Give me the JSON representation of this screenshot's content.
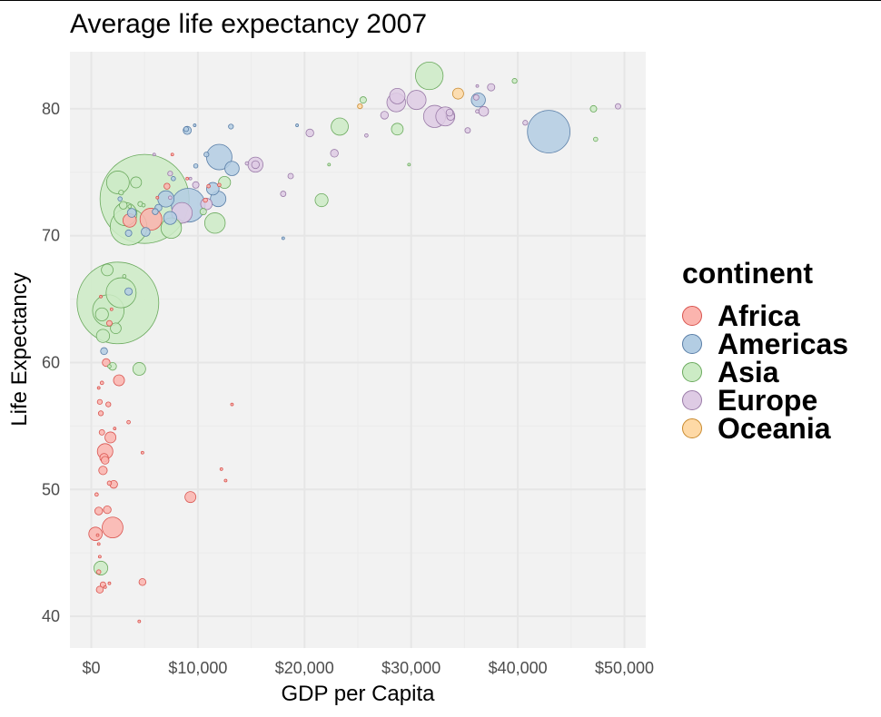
{
  "chart_data": {
    "type": "scatter",
    "title": "Average life expectancy 2007",
    "xlabel": "GDP per Capita",
    "ylabel": "Life Expectancy",
    "xlim": [
      -2000,
      52000
    ],
    "ylim": [
      37.5,
      84.5
    ],
    "xticks": [
      0,
      10000,
      20000,
      30000,
      40000,
      50000
    ],
    "xtick_labels": [
      "$0",
      "$10,000",
      "$20,000",
      "$30,000",
      "$40,000",
      "$50,000"
    ],
    "yticks": [
      40,
      50,
      60,
      70,
      80
    ],
    "ytick_labels": [
      "40",
      "50",
      "60",
      "70",
      "80"
    ],
    "grid": true,
    "legend_title": "continent",
    "legend_position": "right",
    "size_variable": "population (millions)",
    "colors": {
      "Africa": {
        "fill": "#FBB4AE",
        "stroke": "#D9544F"
      },
      "Americas": {
        "fill": "#B3CDE3",
        "stroke": "#5A7FA8"
      },
      "Asia": {
        "fill": "#CCEBC5",
        "stroke": "#6BAA5E"
      },
      "Europe": {
        "fill": "#DECBE4",
        "stroke": "#9A7BA8"
      },
      "Oceania": {
        "fill": "#FED9A6",
        "stroke": "#C98A2E"
      }
    },
    "series": [
      {
        "name": "Africa",
        "points": [
          [
            2000,
            47,
            72
          ],
          [
            1300,
            53,
            40
          ],
          [
            400,
            46.5,
            30
          ],
          [
            5600,
            71.3,
            80
          ],
          [
            3600,
            71.2,
            30
          ],
          [
            9300,
            49.4,
            20
          ],
          [
            2600,
            58.6,
            20
          ],
          [
            1800,
            54.1,
            20
          ],
          [
            1100,
            51.5,
            12
          ],
          [
            1200,
            52.5,
            12
          ],
          [
            1300,
            52.3,
            10
          ],
          [
            700,
            48.3,
            10
          ],
          [
            1500,
            48.4,
            10
          ],
          [
            2100,
            50.4,
            10
          ],
          [
            4800,
            42.7,
            8
          ],
          [
            1400,
            60.0,
            10
          ],
          [
            1100,
            42.5,
            5
          ],
          [
            800,
            42.1,
            8
          ],
          [
            1000,
            54.5,
            5
          ],
          [
            1600,
            56.7,
            4
          ],
          [
            800,
            56.9,
            4
          ],
          [
            900,
            56.0,
            4
          ],
          [
            3500,
            55.3,
            2
          ],
          [
            500,
            49.6,
            2
          ],
          [
            700,
            43.5,
            3
          ],
          [
            1700,
            50.5,
            3
          ],
          [
            1000,
            58.4,
            2
          ],
          [
            700,
            58.0,
            1
          ],
          [
            1700,
            63.1,
            5
          ],
          [
            4800,
            52.9,
            1
          ],
          [
            12200,
            51.6,
            0.5
          ],
          [
            12600,
            50.7,
            1
          ],
          [
            13200,
            56.7,
            0.5
          ],
          [
            800,
            44.7,
            1
          ],
          [
            600,
            46.4,
            1
          ],
          [
            1300,
            42.3,
            1
          ],
          [
            1700,
            42.6,
            1
          ],
          [
            700,
            45.7,
            1
          ],
          [
            2200,
            54.8,
            0.3
          ],
          [
            1900,
            64.2,
            1
          ],
          [
            900,
            65.2,
            1
          ],
          [
            4500,
            39.6,
            1
          ],
          [
            6200,
            73.0,
            1
          ],
          [
            7100,
            73.9,
            6
          ],
          [
            12000,
            74.0,
            2
          ],
          [
            7600,
            76.4,
            0.3
          ],
          [
            10700,
            72.8,
            3
          ],
          [
            11000,
            73.9,
            2
          ],
          [
            9000,
            74.5,
            0.3
          ]
        ]
      },
      {
        "name": "Americas",
        "points": [
          [
            42900,
            78.2,
            301
          ],
          [
            9100,
            72.4,
            190
          ],
          [
            12000,
            76.2,
            108
          ],
          [
            11900,
            72.9,
            40
          ],
          [
            13200,
            75.3,
            34
          ],
          [
            7000,
            72.9,
            44
          ],
          [
            7400,
            71.4,
            28
          ],
          [
            11400,
            73.7,
            26
          ],
          [
            3800,
            71.8,
            13
          ],
          [
            5100,
            70.3,
            13
          ],
          [
            6300,
            72.2,
            8
          ],
          [
            1200,
            60.9,
            8
          ],
          [
            3500,
            70.2,
            7
          ],
          [
            2700,
            72.9,
            3
          ],
          [
            6000,
            71.9,
            6
          ],
          [
            9800,
            75.5,
            3
          ],
          [
            13100,
            78.6,
            4
          ],
          [
            9000,
            78.3,
            11
          ],
          [
            8900,
            78.4,
            4
          ],
          [
            10800,
            76.4,
            4
          ],
          [
            9700,
            78.7,
            1
          ],
          [
            7700,
            74.5,
            3
          ],
          [
            19300,
            78.7,
            1
          ],
          [
            18000,
            69.8,
            1
          ],
          [
            36300,
            80.7,
            33
          ],
          [
            3500,
            65.6,
            9
          ]
        ]
      },
      {
        "name": "Asia",
        "points": [
          [
            5000,
            72.9,
            1319
          ],
          [
            2500,
            64.7,
            1110
          ],
          [
            31700,
            82.6,
            127
          ],
          [
            3500,
            70.7,
            224
          ],
          [
            2800,
            65.5,
            150
          ],
          [
            1600,
            64.1,
            165
          ],
          [
            2500,
            74.2,
            86
          ],
          [
            3200,
            71.7,
            89
          ],
          [
            7500,
            70.6,
            70
          ],
          [
            11600,
            71.0,
            70
          ],
          [
            23300,
            78.6,
            49
          ],
          [
            21600,
            72.8,
            28
          ],
          [
            4500,
            59.5,
            27
          ],
          [
            1100,
            62.1,
            29
          ],
          [
            900,
            43.8,
            32
          ],
          [
            1500,
            67.3,
            23
          ],
          [
            2300,
            62.7,
            19
          ],
          [
            12500,
            74.2,
            24
          ],
          [
            28700,
            78.4,
            23
          ],
          [
            4200,
            74.2,
            20
          ],
          [
            3000,
            72.4,
            10
          ],
          [
            1000,
            63.8,
            28
          ],
          [
            47100,
            80.0,
            7
          ],
          [
            10500,
            71.9,
            7
          ],
          [
            2000,
            59.7,
            10
          ],
          [
            39700,
            82.2,
            4
          ],
          [
            47300,
            77.6,
            3
          ],
          [
            29800,
            75.6,
            1
          ],
          [
            22300,
            75.6,
            1
          ],
          [
            4900,
            72.4,
            2
          ],
          [
            25500,
            80.7,
            7
          ],
          [
            3100,
            66.8,
            2
          ],
          [
            2800,
            73.4,
            4
          ],
          [
            4600,
            72.5,
            4
          ],
          [
            1700,
            59.7,
            2
          ],
          [
            3600,
            72.3,
            2
          ]
        ]
      },
      {
        "name": "Europe",
        "points": [
          [
            32200,
            79.4,
            82
          ],
          [
            30500,
            80.7,
            61
          ],
          [
            33200,
            79.4,
            60
          ],
          [
            28600,
            80.5,
            58
          ],
          [
            28700,
            81.0,
            40
          ],
          [
            15400,
            75.6,
            38
          ],
          [
            8500,
            71.8,
            71
          ],
          [
            10800,
            72.5,
            22
          ],
          [
            36800,
            79.8,
            16
          ],
          [
            33700,
            79.4,
            10
          ],
          [
            22800,
            76.5,
            10
          ],
          [
            27500,
            79.5,
            10
          ],
          [
            33600,
            79.7,
            8
          ],
          [
            36100,
            80.9,
            5
          ],
          [
            35300,
            78.3,
            5
          ],
          [
            20500,
            78.1,
            10
          ],
          [
            18000,
            73.3,
            5
          ],
          [
            9800,
            74.0,
            7
          ],
          [
            7400,
            74.9,
            4
          ],
          [
            15400,
            75.6,
            10
          ],
          [
            14600,
            75.7,
            2
          ],
          [
            18700,
            74.7,
            5
          ],
          [
            25800,
            77.9,
            2
          ],
          [
            40700,
            78.9,
            4
          ],
          [
            49400,
            80.2,
            5
          ],
          [
            37500,
            81.7,
            9
          ],
          [
            36200,
            79.8,
            2
          ],
          [
            7400,
            73.0,
            2
          ],
          [
            9300,
            74.5,
            1
          ],
          [
            5900,
            76.4,
            1
          ],
          [
            36200,
            81.8,
            0.3
          ]
        ]
      },
      {
        "name": "Oceania",
        "points": [
          [
            34400,
            81.2,
            20
          ],
          [
            25200,
            80.2,
            4
          ]
        ]
      }
    ]
  }
}
